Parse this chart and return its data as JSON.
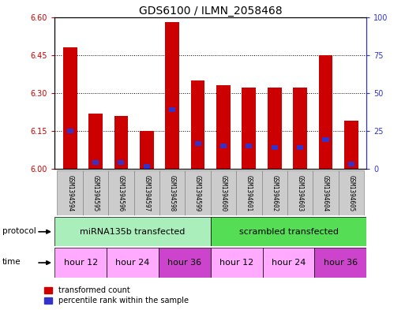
{
  "title": "GDS6100 / ILMN_2058468",
  "samples": [
    "GSM1394594",
    "GSM1394595",
    "GSM1394596",
    "GSM1394597",
    "GSM1394598",
    "GSM1394599",
    "GSM1394600",
    "GSM1394601",
    "GSM1394602",
    "GSM1394603",
    "GSM1394604",
    "GSM1394605"
  ],
  "red_values": [
    6.48,
    6.22,
    6.21,
    6.15,
    6.58,
    6.35,
    6.33,
    6.32,
    6.32,
    6.32,
    6.45,
    6.19
  ],
  "blue_values": [
    6.15,
    6.025,
    6.025,
    6.01,
    6.235,
    6.1,
    6.09,
    6.09,
    6.085,
    6.085,
    6.115,
    6.02
  ],
  "y_min": 6.0,
  "y_max": 6.6,
  "y_ticks_left": [
    6.0,
    6.15,
    6.3,
    6.45,
    6.6
  ],
  "y_ticks_right": [
    0,
    25,
    50,
    75,
    100
  ],
  "bar_width": 0.55,
  "blue_bar_width": 0.25,
  "blue_bar_height": 0.018,
  "red_color": "#cc0000",
  "blue_color": "#3333cc",
  "protocol_label": "protocol",
  "time_label": "time",
  "protocols": [
    {
      "label": "miRNA135b transfected",
      "start": 0,
      "end": 5,
      "color": "#aaeebb"
    },
    {
      "label": "scrambled transfected",
      "start": 6,
      "end": 11,
      "color": "#55dd66"
    }
  ],
  "time_groups": [
    {
      "label": "hour 12",
      "start": 0,
      "end": 1,
      "color": "#ffaaff"
    },
    {
      "label": "hour 24",
      "start": 2,
      "end": 3,
      "color": "#ffaaff"
    },
    {
      "label": "hour 36",
      "start": 4,
      "end": 5,
      "color": "#dd55dd"
    },
    {
      "label": "hour 12",
      "start": 6,
      "end": 7,
      "color": "#ffaaff"
    },
    {
      "label": "hour 24",
      "start": 8,
      "end": 9,
      "color": "#ffaaff"
    },
    {
      "label": "hour 36",
      "start": 10,
      "end": 11,
      "color": "#dd55dd"
    }
  ],
  "legend_red": "transformed count",
  "legend_blue": "percentile rank within the sample",
  "background_color": "#ffffff",
  "plot_bg_color": "#ffffff",
  "label_area_color": "#cccccc",
  "title_fontsize": 10,
  "tick_fontsize": 7,
  "sample_fontsize": 5.5,
  "row_fontsize": 8,
  "legend_fontsize": 7
}
